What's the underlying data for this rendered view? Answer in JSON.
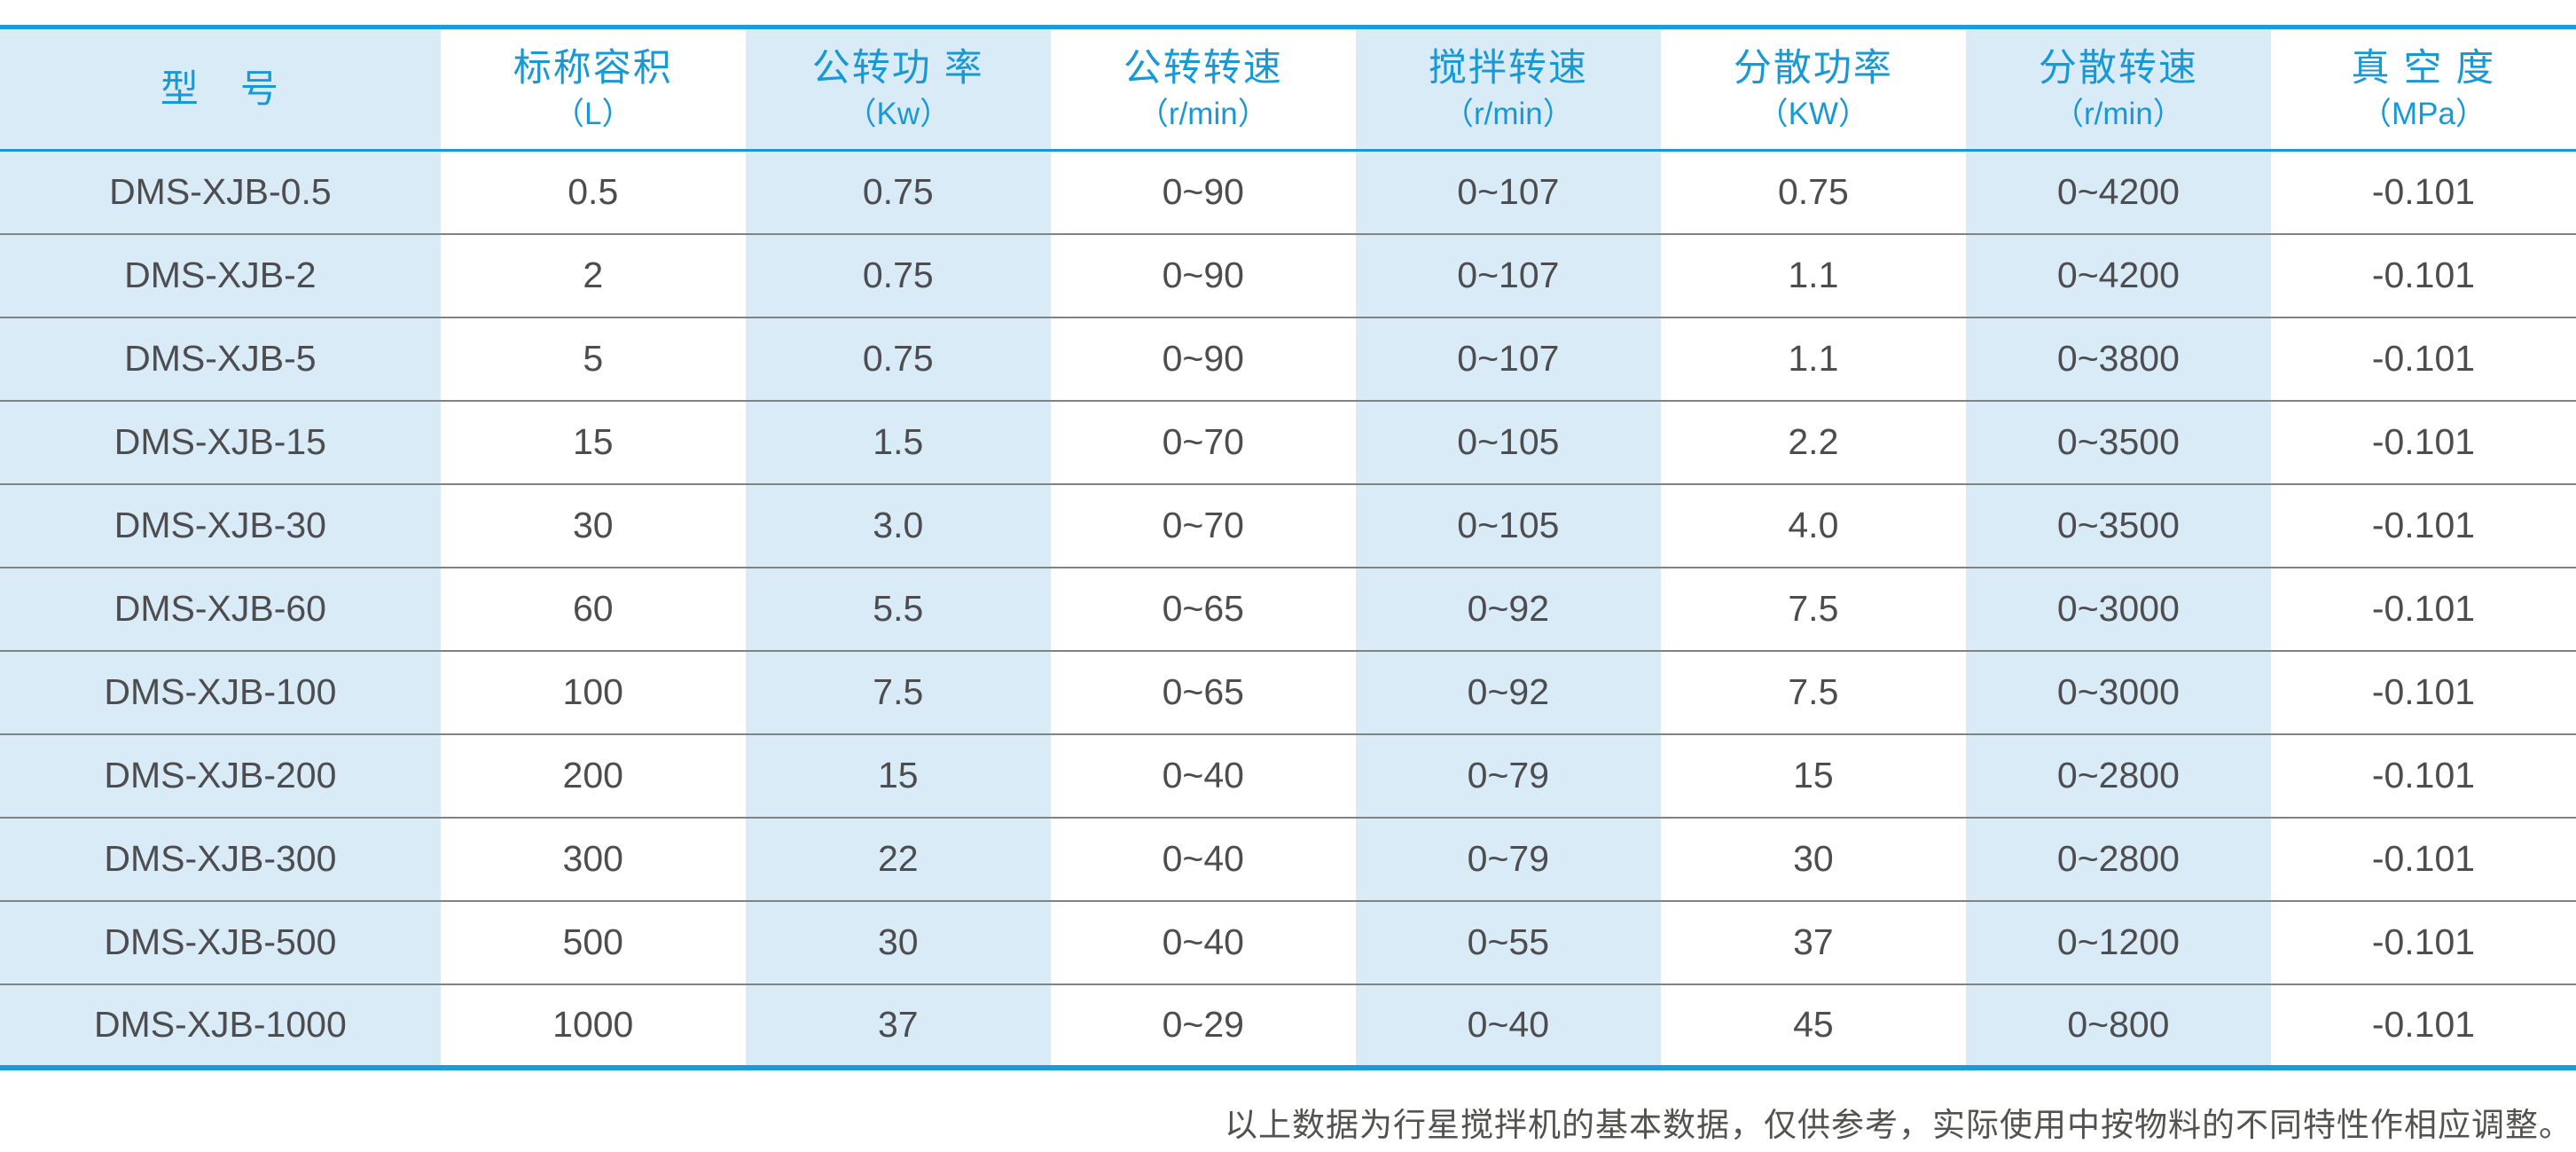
{
  "colors": {
    "accent_blue": "#1a9cd8",
    "header_text_blue": "#1899d6",
    "stripe_light_blue": "#daebf8",
    "body_text_gray": "#4d4d4f",
    "row_divider_gray": "#828282",
    "footer_text_gray": "#53524f"
  },
  "table": {
    "columns": [
      {
        "title": "型　号",
        "unit": ""
      },
      {
        "title": "标称容积",
        "unit": "（L）"
      },
      {
        "title": "公转功 率",
        "unit": "（Kw）"
      },
      {
        "title": "公转转速",
        "unit": "（r/min）"
      },
      {
        "title": "搅拌转速",
        "unit": "（r/min）"
      },
      {
        "title": "分散功率",
        "unit": "（KW）"
      },
      {
        "title": "分散转速",
        "unit": "（r/min）"
      },
      {
        "title": "真 空 度",
        "unit": "（MPa）"
      }
    ],
    "rows": [
      {
        "cells": [
          "DMS-XJB-0.5",
          "0.5",
          "0.75",
          "0~90",
          "0~107",
          "0.75",
          "0~4200",
          "-0.101"
        ]
      },
      {
        "cells": [
          "DMS-XJB-2",
          "2",
          "0.75",
          "0~90",
          "0~107",
          "1.1",
          "0~4200",
          "-0.101"
        ]
      },
      {
        "cells": [
          "DMS-XJB-5",
          "5",
          "0.75",
          "0~90",
          "0~107",
          "1.1",
          "0~3800",
          "-0.101"
        ]
      },
      {
        "cells": [
          "DMS-XJB-15",
          "15",
          "1.5",
          "0~70",
          "0~105",
          "2.2",
          "0~3500",
          "-0.101"
        ]
      },
      {
        "cells": [
          "DMS-XJB-30",
          "30",
          "3.0",
          "0~70",
          "0~105",
          "4.0",
          "0~3500",
          "-0.101"
        ]
      },
      {
        "cells": [
          "DMS-XJB-60",
          "60",
          "5.5",
          "0~65",
          "0~92",
          "7.5",
          "0~3000",
          "-0.101"
        ]
      },
      {
        "cells": [
          "DMS-XJB-100",
          "100",
          "7.5",
          "0~65",
          "0~92",
          "7.5",
          "0~3000",
          "-0.101"
        ]
      },
      {
        "cells": [
          "DMS-XJB-200",
          "200",
          "15",
          "0~40",
          "0~79",
          "15",
          "0~2800",
          "-0.101"
        ]
      },
      {
        "cells": [
          "DMS-XJB-300",
          "300",
          "22",
          "0~40",
          "0~79",
          "30",
          "0~2800",
          "-0.101"
        ]
      },
      {
        "cells": [
          "DMS-XJB-500",
          "500",
          "30",
          "0~40",
          "0~55",
          "37",
          "0~1200",
          "-0.101"
        ]
      },
      {
        "cells": [
          "DMS-XJB-1000",
          "1000",
          "37",
          "0~29",
          "0~40",
          "45",
          "0~800",
          "-0.101"
        ]
      }
    ]
  },
  "footer": {
    "note": "以上数据为行星搅拌机的基本数据，仅供参考，实际使用中按物料的不同特性作相应调整。"
  }
}
